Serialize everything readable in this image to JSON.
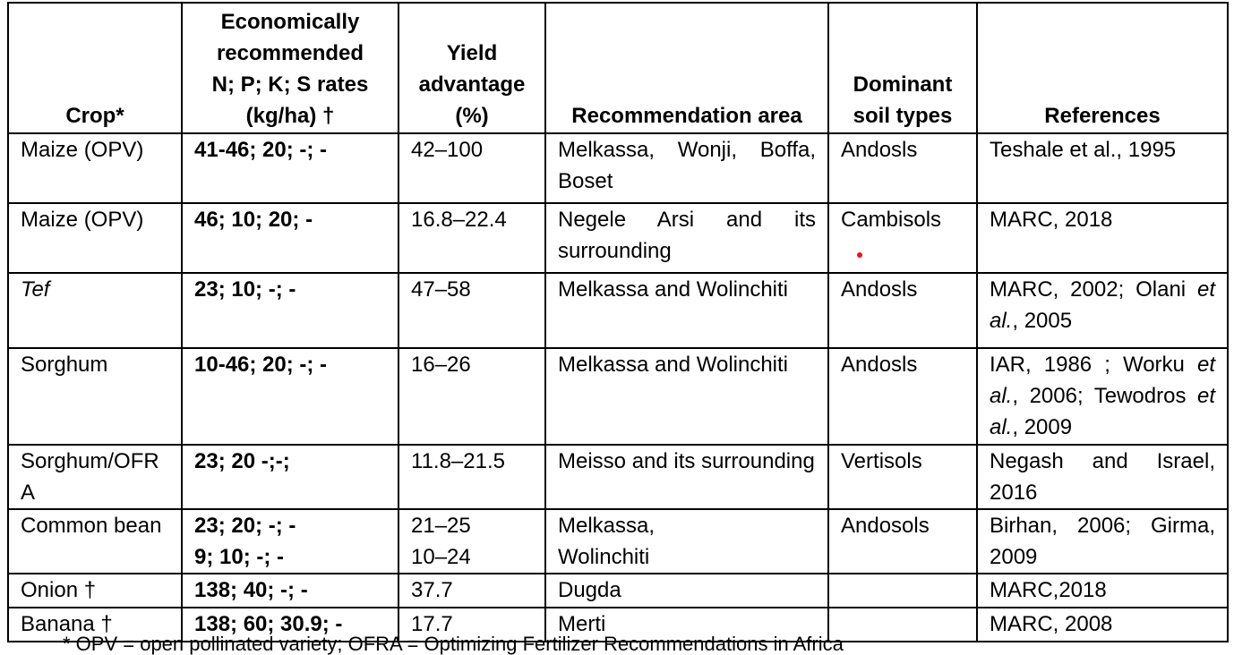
{
  "headers": {
    "crop": "Crop*",
    "rates_l1": "Economically",
    "rates_l2": "recommended",
    "rates_l3": "N; P; K; S rates",
    "rates_l4": "(kg/ha) †",
    "yield_l1": "Yield",
    "yield_l2": "advantage",
    "yield_l3": "(%)",
    "area": "Recommendation area",
    "soil_l1": "Dominant",
    "soil_l2": "soil types",
    "refs": "References"
  },
  "rows": [
    {
      "crop": "Maize (OPV)",
      "rates": "41-46; 20; -; -",
      "yield": "42–100",
      "area": "Melkassa, Wonji, Boffa, Boset",
      "soil": "Andosls",
      "ref": "Teshale et al., 1995"
    },
    {
      "crop": "Maize (OPV)",
      "rates": "46; 10; 20; -",
      "yield": "16.8–22.4",
      "area": "Negele Arsi and its surrounding",
      "soil": "Cambisols",
      "ref": "MARC, 2018"
    },
    {
      "crop": "Tef",
      "rates": "23; 10; -; -",
      "yield": "47–58",
      "area": "Melkassa and Wolinchiti",
      "soil": "Andosls",
      "ref_a": "MARC, 2002; Olani",
      "ref_b": "et al.",
      "ref_c": ", 2005"
    },
    {
      "crop": "Sorghum",
      "rates": "10-46; 20; -; -",
      "yield": "16–26",
      "area": "Melkassa and Wolinchiti",
      "soil": "Andosls",
      "ref_a": "IAR, 1986 ; Worku",
      "ref_b": "et al.",
      "ref_c": ", 2006; Tewodros",
      "ref_d": "et al.",
      "ref_e": ", 2009"
    },
    {
      "crop": "Sorghum/OFRA",
      "rates": "23; 20 -;-;",
      "yield": "11.8–21.5",
      "area": "Meisso and its surrounding",
      "soil": "Vertisols",
      "ref": "Negash and Israel, 2016"
    },
    {
      "crop": "Common bean",
      "rates1": "23; 20; -; -",
      "rates2": "9; 10; -; -",
      "yield1": "21–25",
      "yield2": "10–24",
      "area1": "Melkassa,",
      "area2": "Wolinchiti",
      "soil": "Andosols",
      "ref": "Birhan, 2006; Girma, 2009"
    },
    {
      "crop": "Onion †",
      "rates": "138; 40; -; -",
      "yield": "37.7",
      "area": "Dugda",
      "soil": "",
      "ref": "MARC,2018"
    },
    {
      "crop": "Banana †",
      "rates": "138; 60; 30.9; -",
      "yield": "17.7",
      "area": "Merti",
      "soil": "",
      "ref": "MARC, 2008"
    }
  ],
  "footnote": "* OPV = open pollinated variety; OFRA = Optimizing Fertilizer Recommendations in Africa"
}
